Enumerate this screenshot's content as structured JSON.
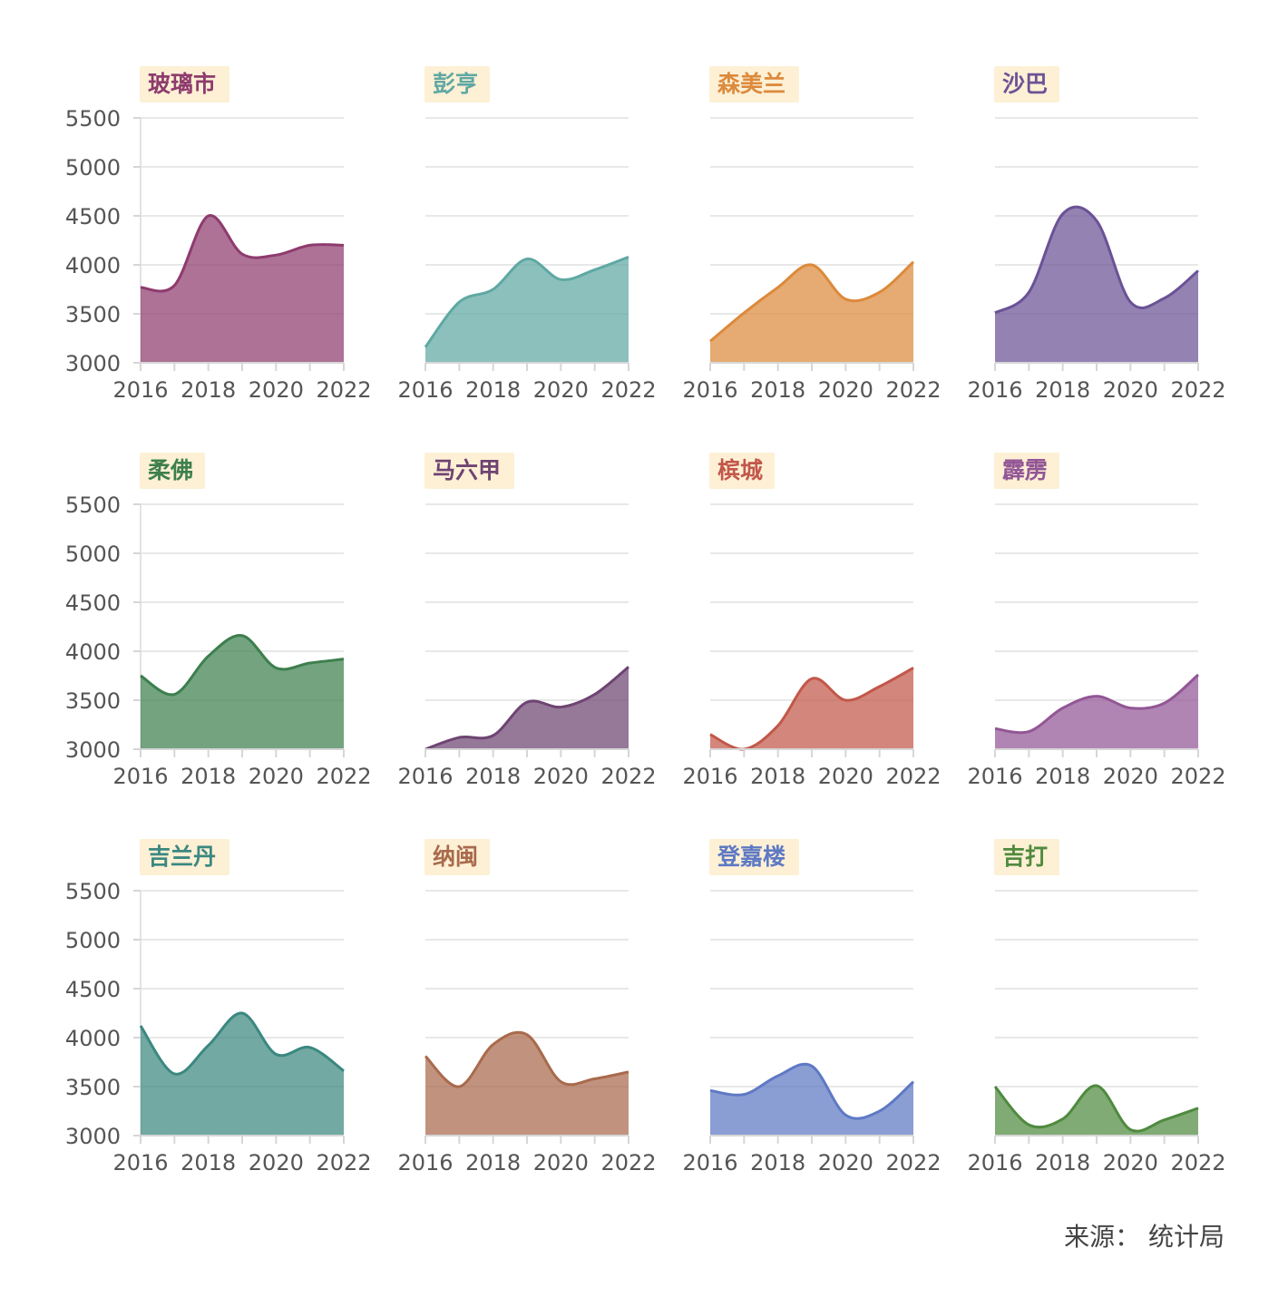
{
  "source_label": "来源：",
  "source_value": "统计局",
  "chart_data": {
    "type": "area",
    "x": [
      2016,
      2017,
      2018,
      2019,
      2020,
      2021,
      2022
    ],
    "x_ticks": [
      "2016",
      "2018",
      "2020",
      "2022"
    ],
    "y_ticks": [
      "3000",
      "3500",
      "4000",
      "4500",
      "5000",
      "5500"
    ],
    "ylim": [
      3000,
      5500
    ],
    "xlim": [
      2016,
      2022
    ],
    "grid": true,
    "title_bg": "#fdf0d5",
    "panels": [
      {
        "title": "玻璃市",
        "color": "#8e3b6e",
        "values": [
          3770,
          3790,
          4500,
          4110,
          4100,
          4200,
          4200
        ]
      },
      {
        "title": "彭亨",
        "color": "#5fa8a3",
        "values": [
          3160,
          3620,
          3750,
          4060,
          3850,
          3950,
          4080
        ]
      },
      {
        "title": "森美兰",
        "color": "#dc8a3c",
        "values": [
          3220,
          3510,
          3770,
          4000,
          3650,
          3720,
          4030
        ]
      },
      {
        "title": "沙巴",
        "color": "#6b5296",
        "values": [
          3510,
          3720,
          4520,
          4450,
          3620,
          3660,
          3940
        ]
      },
      {
        "title": "柔佛",
        "color": "#3d7f4d",
        "values": [
          3750,
          3560,
          3950,
          4160,
          3830,
          3880,
          3920
        ]
      },
      {
        "title": "马六甲",
        "color": "#6e4472",
        "values": [
          3000,
          3120,
          3140,
          3480,
          3430,
          3560,
          3840
        ]
      },
      {
        "title": "槟城",
        "color": "#c2574a",
        "values": [
          3150,
          3000,
          3240,
          3720,
          3500,
          3640,
          3830
        ]
      },
      {
        "title": "霹雳",
        "color": "#925695",
        "values": [
          3210,
          3180,
          3420,
          3540,
          3420,
          3470,
          3760
        ]
      },
      {
        "title": "吉兰丹",
        "color": "#3b8880",
        "values": [
          4120,
          3630,
          3920,
          4250,
          3830,
          3900,
          3660
        ]
      },
      {
        "title": "纳闽",
        "color": "#a96a4c",
        "values": [
          3810,
          3500,
          3930,
          4030,
          3550,
          3580,
          3650
        ]
      },
      {
        "title": "登嘉楼",
        "color": "#5e79c4",
        "values": [
          3460,
          3420,
          3610,
          3710,
          3210,
          3250,
          3550
        ]
      },
      {
        "title": "吉打",
        "color": "#4f8a3f",
        "values": [
          3500,
          3110,
          3170,
          3510,
          3060,
          3160,
          3280
        ]
      }
    ]
  }
}
